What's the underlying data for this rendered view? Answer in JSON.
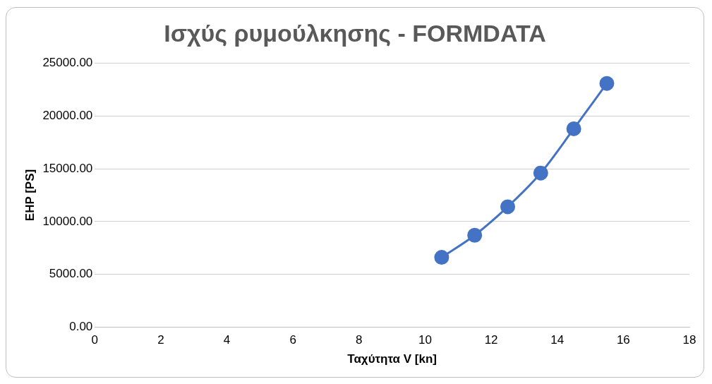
{
  "chart_data": {
    "type": "scatter",
    "title": "Ισχύς ρυμούλκησης - FORMDATA",
    "xlabel": "Ταχύτητα V [kn]",
    "ylabel": "EHP [PS]",
    "x": [
      10.5,
      11.5,
      12.5,
      13.5,
      14.5,
      15.5
    ],
    "series": [
      {
        "type": "line",
        "color": "#4472c4",
        "values": [
          6600,
          8700,
          11400,
          14600,
          18800,
          23100
        ]
      }
    ],
    "xlim": [
      0,
      18
    ],
    "xticks": [
      0,
      2,
      4,
      6,
      8,
      10,
      12,
      14,
      16,
      18
    ],
    "ylim": [
      0,
      25000
    ],
    "yticks": [
      {
        "value": 0,
        "label": "0.00"
      },
      {
        "value": 5000,
        "label": "5000.00"
      },
      {
        "value": 10000,
        "label": "10000.00"
      },
      {
        "value": 15000,
        "label": "15000.00"
      },
      {
        "value": 20000,
        "label": "20000.00"
      },
      {
        "value": 25000,
        "label": "25000.00"
      }
    ],
    "grid": "y",
    "marker": "circle",
    "legend": false
  }
}
